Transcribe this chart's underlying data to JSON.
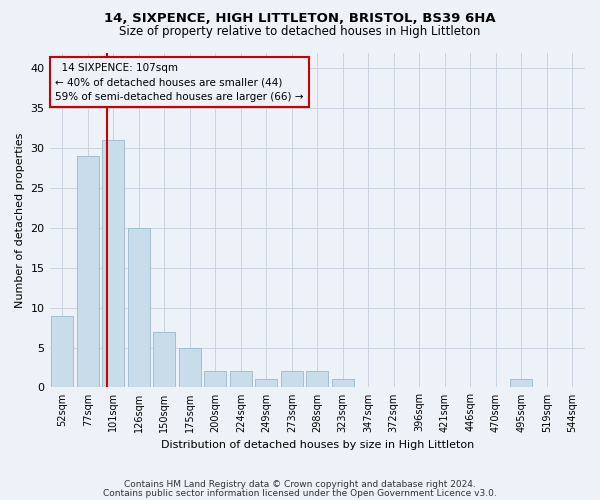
{
  "title1": "14, SIXPENCE, HIGH LITTLETON, BRISTOL, BS39 6HA",
  "title2": "Size of property relative to detached houses in High Littleton",
  "xlabel": "Distribution of detached houses by size in High Littleton",
  "ylabel": "Number of detached properties",
  "footnote1": "Contains HM Land Registry data © Crown copyright and database right 2024.",
  "footnote2": "Contains public sector information licensed under the Open Government Licence v3.0.",
  "annotation_line1": "14 SIXPENCE: 107sqm",
  "annotation_line2": "← 40% of detached houses are smaller (44)",
  "annotation_line3": "59% of semi-detached houses are larger (66) →",
  "bar_labels": [
    "52sqm",
    "77sqm",
    "101sqm",
    "126sqm",
    "150sqm",
    "175sqm",
    "200sqm",
    "224sqm",
    "249sqm",
    "273sqm",
    "298sqm",
    "323sqm",
    "347sqm",
    "372sqm",
    "396sqm",
    "421sqm",
    "446sqm",
    "470sqm",
    "495sqm",
    "519sqm",
    "544sqm"
  ],
  "bar_values": [
    9,
    29,
    31,
    20,
    7,
    5,
    2,
    2,
    1,
    2,
    2,
    1,
    0,
    0,
    0,
    0,
    0,
    0,
    1,
    0,
    0
  ],
  "bar_color": "#c9dcea",
  "bar_edge_color": "#9ab8cc",
  "red_line_color": "#cc0000",
  "ylim": [
    0,
    42
  ],
  "yticks": [
    0,
    5,
    10,
    15,
    20,
    25,
    30,
    35,
    40
  ],
  "grid_color": "#c8d4e0",
  "annotation_box_color": "#cc0000",
  "background_color": "#edf2f9"
}
